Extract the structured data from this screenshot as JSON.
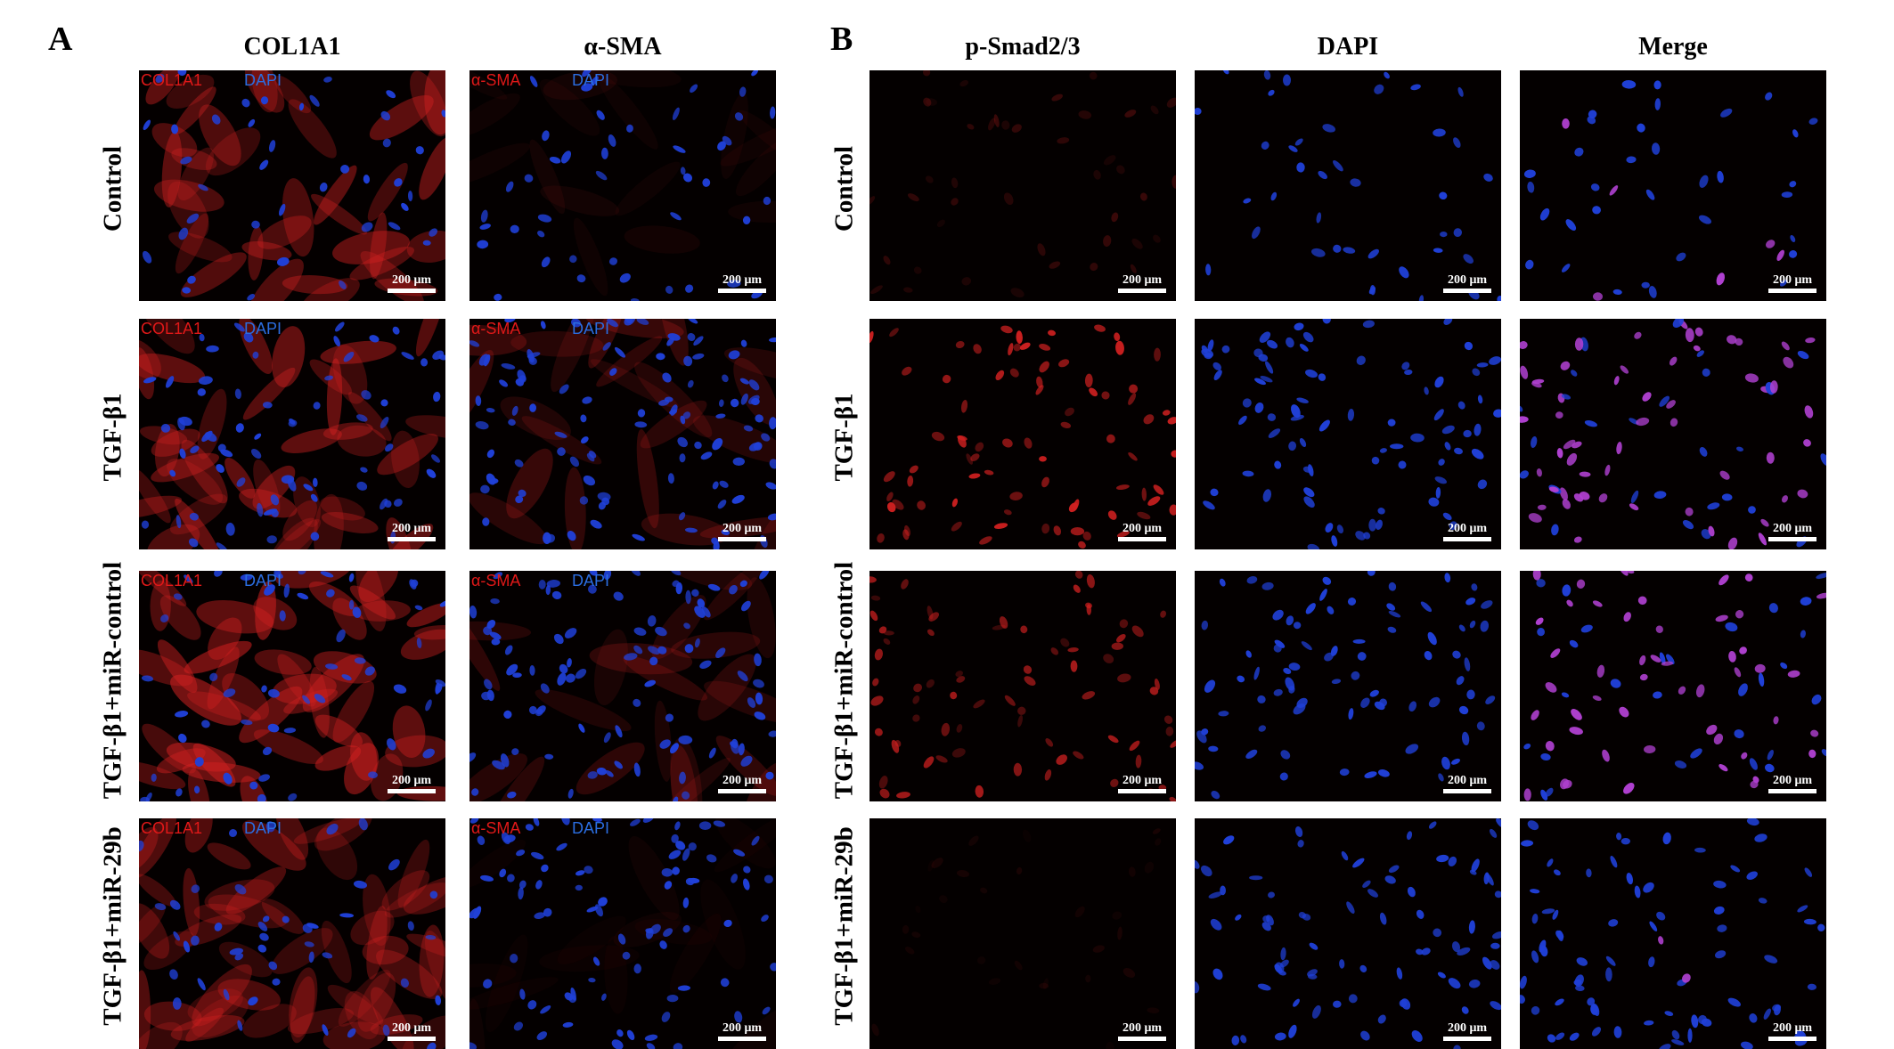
{
  "panels": [
    {
      "letter": "A",
      "columns": [
        "COL1A1",
        "α-SMA"
      ],
      "channel_labels": [
        {
          "red": "COL1A1",
          "blue": "DAPI"
        },
        {
          "red": "α-SMA",
          "blue": "DAPI"
        }
      ]
    },
    {
      "letter": "B",
      "columns": [
        "p-Smad2/3",
        "DAPI",
        "Merge"
      ]
    }
  ],
  "rows": [
    "Control",
    "TGF-β1",
    "TGF-β1+miR-control",
    "TGF-β1+miR-29b"
  ],
  "scale_bar": "200 μm",
  "stain_colors": {
    "red": "#d02020",
    "blue": "#2040d8",
    "merge": "#b040d0",
    "background": "#040000"
  }
}
